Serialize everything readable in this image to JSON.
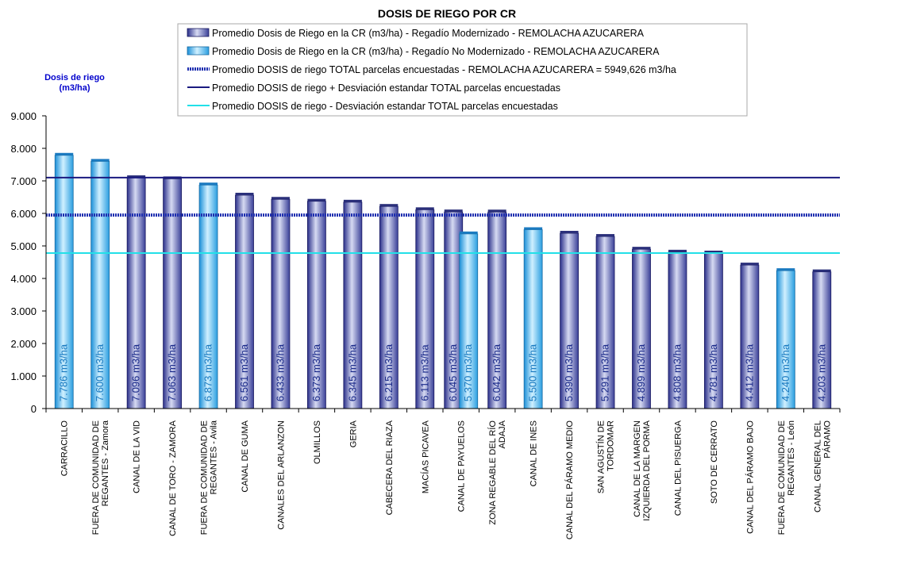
{
  "colors": {
    "modernizado": "#4a5ab4",
    "no_modernizado": "#3aaee8",
    "promedio_total": "#1f2fb0",
    "mas_desviacion": "#1a1a80",
    "menos_desviacion": "#22e0e8"
  },
  "chart_data": {
    "type": "bar",
    "title": "DOSIS DE RIEGO POR CR",
    "ylabel": [
      "Dosis de riego",
      "(m3/ha)"
    ],
    "ylim": [
      0,
      9000
    ],
    "ytick_values": [
      0,
      1000,
      2000,
      3000,
      4000,
      5000,
      6000,
      7000,
      8000,
      9000
    ],
    "ytick_labels": [
      "0",
      "1.000",
      "2.000",
      "3.000",
      "4.000",
      "5.000",
      "6.000",
      "7.000",
      "8.000",
      "9.000"
    ],
    "grid": false,
    "legend_position": "top",
    "categories": [
      [
        "CARRACILLO"
      ],
      [
        "FUERA DE COMUNIDAD DE",
        "REGANTES - Zamora"
      ],
      [
        "CANAL DE LA VID"
      ],
      [
        "CANAL DE TORO - ZAMORA"
      ],
      [
        "FUERA DE COMUNIDAD DE",
        "REGANTES - Avila"
      ],
      [
        "CANAL DE GUMA"
      ],
      [
        "CANALES DEL ARLANZON"
      ],
      [
        "OLMILLOS"
      ],
      [
        "GERIA"
      ],
      [
        "CABECERA DEL RIAZA"
      ],
      [
        "MACÍAS PICAVEA"
      ],
      [
        "CANAL DE PAYUELOS"
      ],
      [
        "ZONA REGABLE DEL RÍO",
        "ADAJA"
      ],
      [
        "CANAL DE INES"
      ],
      [
        "CANAL DEL PÁRAMO MEDIO"
      ],
      [
        "SAN AGUSTÍN DE",
        "TORDOMAR"
      ],
      [
        "CANAL DE LA MARGEN",
        "IZQUIERDA DEL PORMA"
      ],
      [
        "CANAL DEL PISUERGA"
      ],
      [
        "SOTO DE CERRATO"
      ],
      [
        "CANAL DEL PÁRAMO BAJO"
      ],
      [
        "FUERA DE COMUNIDAD DE",
        "REGANTES - León"
      ],
      [
        "CANAL GENERAL DEL",
        "PÁRAMO"
      ]
    ],
    "series": [
      {
        "name": "Promedio Dosis de Riego en la CR (m3/ha) - Regadío Modernizado - REMOLACHA AZUCARERA",
        "values": [
          null,
          null,
          7096,
          7063,
          null,
          6561,
          6433,
          6373,
          6345,
          6215,
          6113,
          6045,
          6042,
          null,
          5390,
          5291,
          4899,
          4808,
          4781,
          4412,
          null,
          4203
        ],
        "labels": [
          null,
          null,
          "7.096 m3/ha",
          "7.063 m3/ha",
          null,
          "6.561 m3/ha",
          "6.433 m3/ha",
          "6.373 m3/ha",
          "6.345 m3/ha",
          "6.215 m3/ha",
          "6.113 m3/ha",
          "6.045 m3/ha",
          "6.042 m3/ha",
          null,
          "5.390 m3/ha",
          "5.291 m3/ha",
          "4.899 m3/ha",
          "4.808 m3/ha",
          "4.781 m3/ha",
          "4.412 m3/ha",
          null,
          "4.203 m3/ha"
        ]
      },
      {
        "name": "Promedio Dosis de Riego en la CR (m3/ha) - Regadío No Modernizado - REMOLACHA AZUCARERA",
        "values": [
          7786,
          7600,
          null,
          null,
          6873,
          null,
          null,
          null,
          null,
          null,
          null,
          5370,
          null,
          5500,
          null,
          null,
          null,
          null,
          null,
          null,
          4240,
          null
        ],
        "labels": [
          "7.786 m3/ha",
          "7.600 m3/ha",
          null,
          null,
          "6.873 m3/ha",
          null,
          null,
          null,
          null,
          null,
          null,
          "5.370 m3/ha",
          null,
          "5.500 m3/ha",
          null,
          null,
          null,
          null,
          null,
          null,
          "4.240 m3/ha",
          null
        ]
      }
    ],
    "reference_lines": [
      {
        "name": "Promedio DOSIS de riego TOTAL parcelas encuestadas - REMOLACHA AZUCARERA = 5949,626 m3/ha",
        "value": 5949.626
      },
      {
        "name": "Promedio DOSIS de riego + Desviación estandar TOTAL parcelas encuestadas",
        "value": 7100
      },
      {
        "name": "Promedio DOSIS de riego - Desviación estandar TOTAL parcelas encuestadas",
        "value": 4780
      }
    ]
  }
}
